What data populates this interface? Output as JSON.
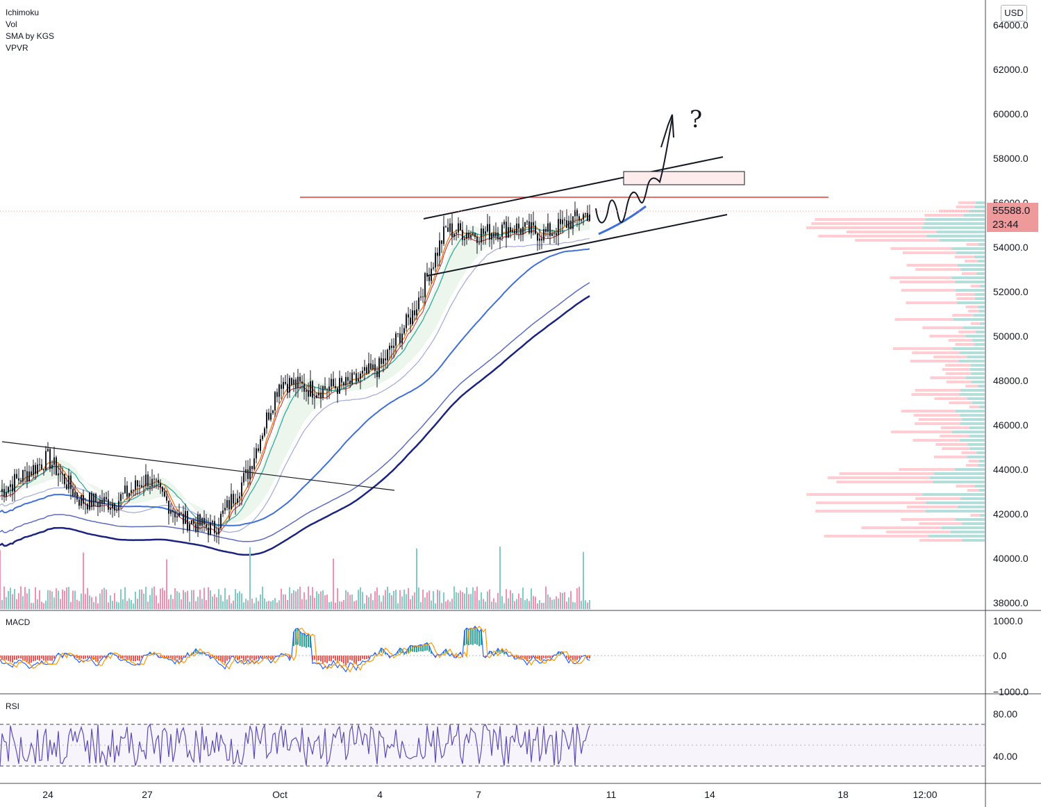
{
  "indicators": [
    "Ichimoku",
    "Vol",
    "SMA by KGS",
    "VPVR"
  ],
  "currency": "USD",
  "current_price": "55588.0",
  "countdown": "23:44",
  "panes": {
    "macd_label": "MACD",
    "rsi_label": "RSI"
  },
  "annotation": "?",
  "colors": {
    "candle": "#131722",
    "resistance_line": "#e53935",
    "trendline": "#131722",
    "sma_dark": "#1a237e",
    "sma_blue": "#3f6fd8",
    "vol_up": "#80cbc4",
    "vol_down": "#f48fb1",
    "macd_line": "#2962ff",
    "signal_line": "#ff9800",
    "rsi_line": "#5c4bb4",
    "vpvr_up": "#b2dfdb",
    "vpvr_down": "#ffcdd2"
  },
  "chart_data": {
    "type": "line",
    "title": "",
    "price_axis": {
      "ticks": [
        "64000.0",
        "62000.0",
        "60000.0",
        "58000.0",
        "56000.0",
        "54000.0",
        "52000.0",
        "50000.0",
        "48000.0",
        "46000.0",
        "44000.0",
        "42000.0",
        "40000.0",
        "38000.0"
      ],
      "ylim": [
        37700,
        64500
      ]
    },
    "time_axis": {
      "ticks": [
        "24",
        "27",
        "Oct",
        "4",
        "7",
        "11",
        "14",
        "18",
        "12:00"
      ]
    },
    "price_series": {
      "name": "",
      "x": [
        "Sep 23",
        "Sep 24",
        "Sep 25",
        "Sep 26",
        "Sep 27",
        "Sep 28",
        "Sep 29",
        "Sep 30",
        "Oct 1",
        "Oct 2",
        "Oct 3",
        "Oct 4",
        "Oct 5",
        "Oct 6",
        "Oct 7",
        "Oct 8",
        "Oct 9",
        "Oct 10"
      ],
      "values": [
        43000,
        44500,
        42600,
        42500,
        43600,
        41800,
        41300,
        43800,
        48000,
        47600,
        47800,
        48600,
        51000,
        54800,
        54600,
        54900,
        54600,
        55588
      ]
    },
    "resistance_level": 56300,
    "macd_axis": {
      "ticks": [
        "1000.0",
        "0.0",
        "-1000.0"
      ]
    },
    "rsi_axis": {
      "ticks": [
        "80.00",
        "40.00"
      ],
      "bands": [
        70,
        30
      ]
    }
  }
}
